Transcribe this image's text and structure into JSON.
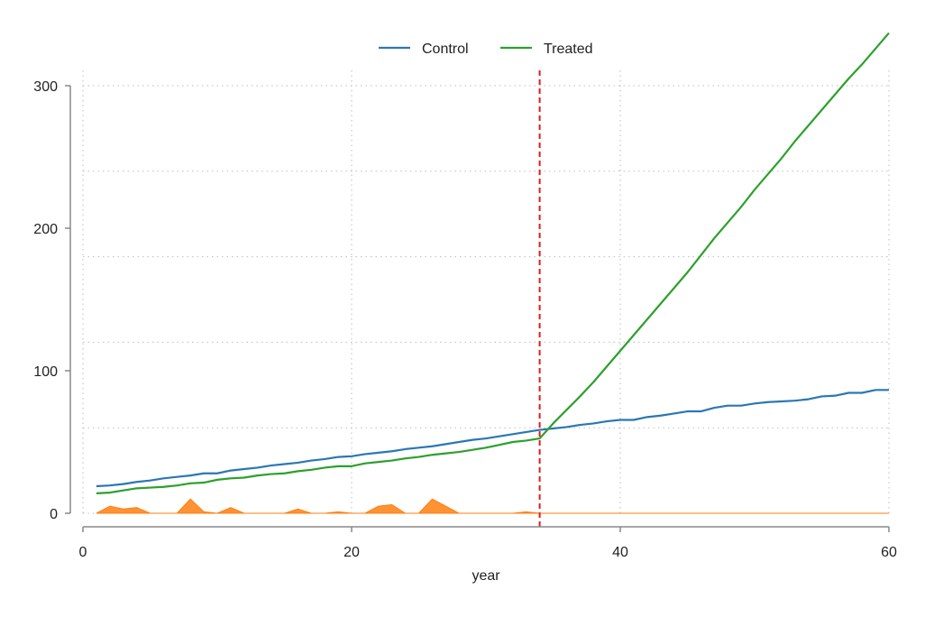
{
  "chart_data": {
    "type": "line",
    "title": "",
    "xlabel": "year",
    "ylabel": "",
    "xlim": [
      0,
      60
    ],
    "ylim": [
      0,
      300
    ],
    "x_ticks": [
      0,
      20,
      40,
      60
    ],
    "y_ticks": [
      0,
      100,
      200,
      300
    ],
    "x_tick_labels": [
      "0",
      "20",
      "40",
      "60"
    ],
    "y_tick_labels": [
      "0",
      "100",
      "200",
      "300"
    ],
    "grid": "dotted",
    "legend": {
      "position": "top-center",
      "items": [
        "Control",
        "Treated"
      ]
    },
    "colors": {
      "control": "#2a77b4",
      "treated": "#2ca02c",
      "effect": "#ff7f0e",
      "vline": "#e31a1c",
      "axis": "#888888",
      "grid": "#bdbdbd"
    },
    "vline_x": 34,
    "x": [
      1,
      2,
      3,
      4,
      5,
      6,
      7,
      8,
      9,
      10,
      11,
      12,
      13,
      14,
      15,
      16,
      17,
      18,
      19,
      20,
      21,
      22,
      23,
      24,
      25,
      26,
      27,
      28,
      29,
      30,
      31,
      32,
      33,
      34,
      35,
      36,
      37,
      38,
      39,
      40,
      41,
      42,
      43,
      44,
      45,
      46,
      47,
      48,
      49,
      50,
      51,
      52,
      53,
      54,
      55,
      56,
      57,
      58,
      59,
      60
    ],
    "series": [
      {
        "name": "Control",
        "values": [
          19,
          19.5,
          20.5,
          22,
          23,
          24.5,
          25.5,
          26.5,
          28,
          28,
          30,
          31,
          32,
          33.5,
          34.5,
          35.5,
          37,
          38,
          39.5,
          40,
          41.5,
          42.5,
          43.5,
          45,
          46,
          47,
          48.5,
          50,
          51.5,
          52.5,
          54,
          55.5,
          57,
          58.5,
          59.5,
          60.5,
          62,
          63,
          64.5,
          65.5,
          65.5,
          67.5,
          68.5,
          70,
          71.5,
          71.5,
          74,
          75.5,
          75.5,
          77,
          78,
          78.5,
          79,
          80,
          82,
          82.5,
          84.5,
          84.5,
          86.5,
          86.5
        ]
      },
      {
        "name": "Treated",
        "values": [
          14,
          14.5,
          16,
          17.5,
          18,
          18.5,
          19.5,
          21,
          21.5,
          23.5,
          24.5,
          25,
          26.5,
          27.5,
          28,
          29.5,
          30.5,
          32,
          33,
          33,
          35,
          36,
          37,
          38.5,
          39.5,
          41,
          42,
          43,
          44.5,
          46,
          48,
          50,
          51,
          52.5,
          63,
          72.5,
          82,
          92,
          103,
          114,
          125,
          136,
          147,
          158,
          169,
          181,
          193,
          204,
          215,
          227,
          238,
          249,
          261,
          272,
          283,
          294,
          305,
          315,
          326,
          337
        ]
      },
      {
        "name": "",
        "values": [
          0,
          5,
          3,
          4,
          0,
          0,
          0,
          10,
          1,
          0,
          4,
          0,
          0,
          0,
          0,
          3,
          0,
          0,
          1,
          0,
          0,
          5,
          6,
          0,
          0,
          10,
          5,
          0,
          0,
          0,
          0,
          0,
          1,
          0,
          0,
          0,
          0,
          0,
          0,
          0,
          0,
          0,
          0,
          0,
          0,
          0,
          0,
          0,
          0,
          0,
          0,
          0,
          0,
          0,
          0,
          0,
          0,
          0,
          0,
          0
        ]
      }
    ]
  }
}
